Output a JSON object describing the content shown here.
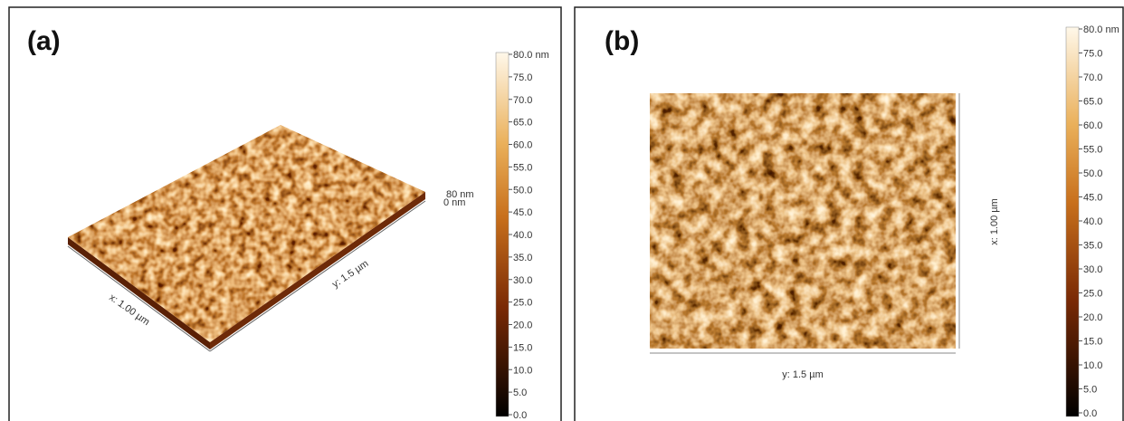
{
  "panel_a": {
    "label": "(a)",
    "x_axis": "x: 1.00 µm",
    "y_axis": "y: 1.5 µm",
    "z_max": "80 nm",
    "z_min": "0 nm",
    "colorbar": [
      "80.0 nm",
      "75.0",
      "70.0",
      "65.0",
      "60.0",
      "55.0",
      "50.0",
      "45.0",
      "40.0",
      "35.0",
      "30.0",
      "25.0",
      "20.0",
      "15.0",
      "10.0",
      "5.0",
      "0.0"
    ]
  },
  "panel_b": {
    "label": "(b)",
    "x_axis": "x: 1.00 µm",
    "y_axis": "y: 1.5 µm",
    "colorbar": [
      "80.0 nm",
      "75.0",
      "70.0",
      "65.0",
      "60.0",
      "55.0",
      "50.0",
      "45.0",
      "40.0",
      "35.0",
      "30.0",
      "25.0",
      "20.0",
      "15.0",
      "10.0",
      "5.0",
      "0.0"
    ]
  }
}
